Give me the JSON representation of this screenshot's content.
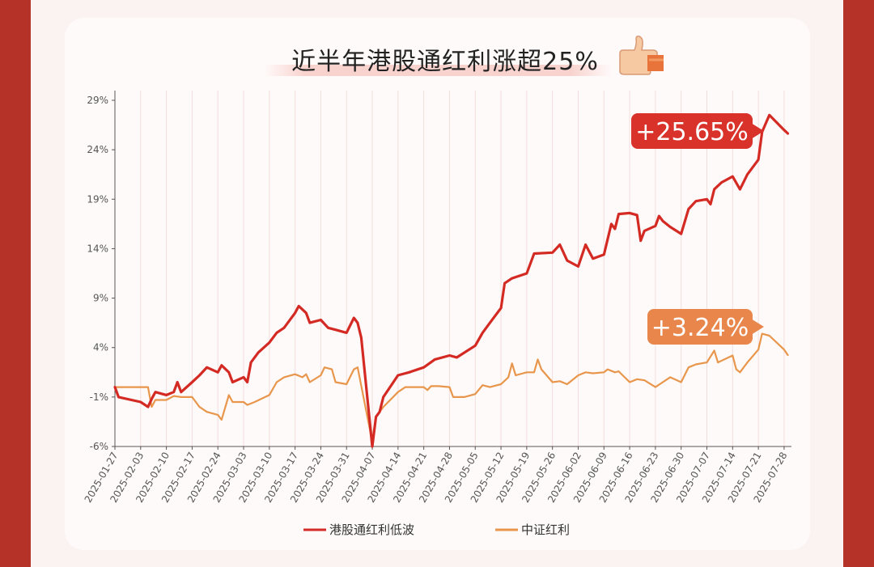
{
  "colors": {
    "frame": "#b43227",
    "series_primary": "#d42a24",
    "series_secondary": "#e8964b",
    "callout_primary": "#d9322b",
    "callout_secondary": "#e8864b"
  },
  "icons": {
    "title_icon": "thumbs-up-icon"
  },
  "chart_data": {
    "type": "line",
    "title": "近半年港股通红利涨超25%",
    "xlabel": "",
    "ylabel": "",
    "y_unit": "%",
    "ylim": [
      -6,
      30
    ],
    "y_ticks": [
      "29%",
      "24%",
      "19%",
      "14%",
      "9%",
      "4%",
      "-1%",
      "-6%"
    ],
    "x_range": [
      "2025-01-27",
      "2025-07-30"
    ],
    "x_ticks": [
      "2025-01-27",
      "2025-02-03",
      "2025-02-10",
      "2025-02-17",
      "2025-02-24",
      "2025-03-03",
      "2025-03-10",
      "2025-03-17",
      "2025-03-24",
      "2025-03-31",
      "2025-04-07",
      "2025-04-14",
      "2025-04-21",
      "2025-04-28",
      "2025-05-05",
      "2025-05-12",
      "2025-05-19",
      "2025-05-26",
      "2025-06-02",
      "2025-06-09",
      "2025-06-16",
      "2025-06-23",
      "2025-06-30",
      "2025-07-07",
      "2025-07-14",
      "2025-07-21",
      "2025-07-28"
    ],
    "grid": "vertical",
    "legend_position": "bottom",
    "series": [
      {
        "name": "港股通红利低波",
        "color": "#d42a24",
        "end_label": "+25.65%",
        "points": [
          [
            "2025-01-27",
            0
          ],
          [
            "2025-01-28",
            -1
          ],
          [
            "2025-02-03",
            -1.5
          ],
          [
            "2025-02-05",
            -2
          ],
          [
            "2025-02-06",
            -1.2
          ],
          [
            "2025-02-07",
            -0.5
          ],
          [
            "2025-02-10",
            -0.8
          ],
          [
            "2025-02-12",
            -0.5
          ],
          [
            "2025-02-13",
            0.5
          ],
          [
            "2025-02-14",
            -0.5
          ],
          [
            "2025-02-17",
            0.5
          ],
          [
            "2025-02-19",
            1.2
          ],
          [
            "2025-02-21",
            2
          ],
          [
            "2025-02-24",
            1.5
          ],
          [
            "2025-02-25",
            2.2
          ],
          [
            "2025-02-27",
            1.5
          ],
          [
            "2025-02-28",
            0.5
          ],
          [
            "2025-03-03",
            1
          ],
          [
            "2025-03-04",
            0.5
          ],
          [
            "2025-03-05",
            2.5
          ],
          [
            "2025-03-07",
            3.5
          ],
          [
            "2025-03-10",
            4.5
          ],
          [
            "2025-03-12",
            5.5
          ],
          [
            "2025-03-14",
            6
          ],
          [
            "2025-03-17",
            7.5
          ],
          [
            "2025-03-18",
            8.2
          ],
          [
            "2025-03-20",
            7.5
          ],
          [
            "2025-03-21",
            6.5
          ],
          [
            "2025-03-24",
            6.8
          ],
          [
            "2025-03-26",
            6
          ],
          [
            "2025-03-28",
            5.8
          ],
          [
            "2025-03-31",
            5.5
          ],
          [
            "2025-04-02",
            7
          ],
          [
            "2025-04-03",
            6.5
          ],
          [
            "2025-04-04",
            5
          ],
          [
            "2025-04-07",
            -6
          ],
          [
            "2025-04-08",
            -3
          ],
          [
            "2025-04-09",
            -2.5
          ],
          [
            "2025-04-10",
            -1
          ],
          [
            "2025-04-14",
            1.2
          ],
          [
            "2025-04-17",
            1.5
          ],
          [
            "2025-04-21",
            2
          ],
          [
            "2025-04-24",
            2.8
          ],
          [
            "2025-04-28",
            3.2
          ],
          [
            "2025-04-30",
            3
          ],
          [
            "2025-05-05",
            4.2
          ],
          [
            "2025-05-07",
            5.5
          ],
          [
            "2025-05-09",
            6.5
          ],
          [
            "2025-05-12",
            8
          ],
          [
            "2025-05-13",
            10.5
          ],
          [
            "2025-05-15",
            11
          ],
          [
            "2025-05-19",
            11.5
          ],
          [
            "2025-05-21",
            13.5
          ],
          [
            "2025-05-26",
            13.6
          ],
          [
            "2025-05-28",
            14.4
          ],
          [
            "2025-05-30",
            12.8
          ],
          [
            "2025-06-02",
            12.2
          ],
          [
            "2025-06-04",
            14.4
          ],
          [
            "2025-06-06",
            13
          ],
          [
            "2025-06-09",
            13.4
          ],
          [
            "2025-06-11",
            16.5
          ],
          [
            "2025-06-12",
            16
          ],
          [
            "2025-06-13",
            17.5
          ],
          [
            "2025-06-16",
            17.6
          ],
          [
            "2025-06-18",
            17.4
          ],
          [
            "2025-06-19",
            14.8
          ],
          [
            "2025-06-20",
            15.8
          ],
          [
            "2025-06-23",
            16.3
          ],
          [
            "2025-06-24",
            17.3
          ],
          [
            "2025-06-25",
            16.8
          ],
          [
            "2025-06-27",
            16.2
          ],
          [
            "2025-06-30",
            15.5
          ],
          [
            "2025-07-02",
            18
          ],
          [
            "2025-07-04",
            18.8
          ],
          [
            "2025-07-07",
            19
          ],
          [
            "2025-07-08",
            18.5
          ],
          [
            "2025-07-09",
            20
          ],
          [
            "2025-07-11",
            20.7
          ],
          [
            "2025-07-14",
            21.3
          ],
          [
            "2025-07-16",
            20
          ],
          [
            "2025-07-18",
            21.5
          ],
          [
            "2025-07-21",
            23
          ],
          [
            "2025-07-22",
            25.8
          ],
          [
            "2025-07-24",
            27.5
          ],
          [
            "2025-07-28",
            26
          ],
          [
            "2025-07-29",
            25.65
          ]
        ]
      },
      {
        "name": "中证红利",
        "color": "#e8964b",
        "end_label": "+3.24%",
        "points": [
          [
            "2025-01-27",
            0
          ],
          [
            "2025-02-03",
            0
          ],
          [
            "2025-02-05",
            0
          ],
          [
            "2025-02-06",
            -2
          ],
          [
            "2025-02-07",
            -1.3
          ],
          [
            "2025-02-10",
            -1.3
          ],
          [
            "2025-02-12",
            -0.9
          ],
          [
            "2025-02-14",
            -1
          ],
          [
            "2025-02-17",
            -1
          ],
          [
            "2025-02-19",
            -2
          ],
          [
            "2025-02-21",
            -2.5
          ],
          [
            "2025-02-24",
            -2.8
          ],
          [
            "2025-02-25",
            -3.3
          ],
          [
            "2025-02-27",
            -0.8
          ],
          [
            "2025-02-28",
            -1.5
          ],
          [
            "2025-03-03",
            -1.5
          ],
          [
            "2025-03-04",
            -1.8
          ],
          [
            "2025-03-06",
            -1.5
          ],
          [
            "2025-03-10",
            -0.8
          ],
          [
            "2025-03-12",
            0.5
          ],
          [
            "2025-03-14",
            1
          ],
          [
            "2025-03-17",
            1.3
          ],
          [
            "2025-03-19",
            1
          ],
          [
            "2025-03-20",
            1.3
          ],
          [
            "2025-03-21",
            0.5
          ],
          [
            "2025-03-24",
            1.2
          ],
          [
            "2025-03-25",
            2
          ],
          [
            "2025-03-27",
            1.8
          ],
          [
            "2025-03-28",
            0.5
          ],
          [
            "2025-03-31",
            0.3
          ],
          [
            "2025-04-02",
            1.8
          ],
          [
            "2025-04-03",
            2
          ],
          [
            "2025-04-07",
            -5.5
          ],
          [
            "2025-04-08",
            -3
          ],
          [
            "2025-04-10",
            -2
          ],
          [
            "2025-04-14",
            -0.5
          ],
          [
            "2025-04-16",
            0
          ],
          [
            "2025-04-21",
            0
          ],
          [
            "2025-04-22",
            -0.3
          ],
          [
            "2025-04-23",
            0.1
          ],
          [
            "2025-04-25",
            0.1
          ],
          [
            "2025-04-28",
            0
          ],
          [
            "2025-04-29",
            -1
          ],
          [
            "2025-05-02",
            -1
          ],
          [
            "2025-05-05",
            -0.7
          ],
          [
            "2025-05-07",
            0.2
          ],
          [
            "2025-05-09",
            0
          ],
          [
            "2025-05-12",
            0.3
          ],
          [
            "2025-05-14",
            1
          ],
          [
            "2025-05-15",
            2.4
          ],
          [
            "2025-05-16",
            1.2
          ],
          [
            "2025-05-19",
            1.5
          ],
          [
            "2025-05-21",
            1.5
          ],
          [
            "2025-05-22",
            2.8
          ],
          [
            "2025-05-23",
            1.8
          ],
          [
            "2025-05-26",
            0.5
          ],
          [
            "2025-05-28",
            0.6
          ],
          [
            "2025-05-30",
            0.3
          ],
          [
            "2025-06-02",
            1.2
          ],
          [
            "2025-06-04",
            1.5
          ],
          [
            "2025-06-06",
            1.4
          ],
          [
            "2025-06-09",
            1.5
          ],
          [
            "2025-06-10",
            1.8
          ],
          [
            "2025-06-12",
            1.5
          ],
          [
            "2025-06-13",
            1.6
          ],
          [
            "2025-06-16",
            0.5
          ],
          [
            "2025-06-18",
            0.8
          ],
          [
            "2025-06-20",
            0.7
          ],
          [
            "2025-06-23",
            0
          ],
          [
            "2025-06-25",
            0.5
          ],
          [
            "2025-06-27",
            1
          ],
          [
            "2025-06-30",
            0.5
          ],
          [
            "2025-07-02",
            2
          ],
          [
            "2025-07-04",
            2.3
          ],
          [
            "2025-07-07",
            2.5
          ],
          [
            "2025-07-09",
            3.7
          ],
          [
            "2025-07-10",
            2.5
          ],
          [
            "2025-07-14",
            3.2
          ],
          [
            "2025-07-15",
            1.8
          ],
          [
            "2025-07-16",
            1.5
          ],
          [
            "2025-07-18",
            2.5
          ],
          [
            "2025-07-21",
            3.8
          ],
          [
            "2025-07-22",
            5.4
          ],
          [
            "2025-07-24",
            5.2
          ],
          [
            "2025-07-28",
            3.8
          ],
          [
            "2025-07-29",
            3.24
          ]
        ]
      }
    ]
  }
}
